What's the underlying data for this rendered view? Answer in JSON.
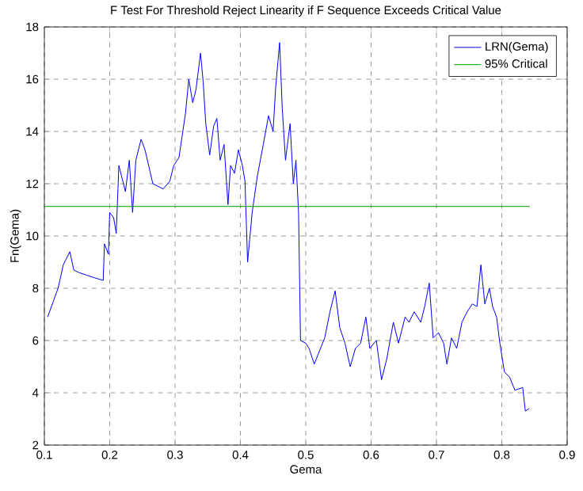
{
  "chart_data": {
    "type": "line",
    "title": "F Test For Threshold Reject Linearity if F Sequence Exceeds Critical Value",
    "xlabel": "Gema",
    "ylabel": "Fn(Gema)",
    "xlim": [
      0.1,
      0.9
    ],
    "xticks": [
      0.1,
      0.2,
      0.3,
      0.4,
      0.5,
      0.6,
      0.7,
      0.8,
      0.9
    ],
    "ylim": [
      2,
      18
    ],
    "yticks": [
      2,
      4,
      6,
      8,
      10,
      12,
      14,
      16,
      18
    ],
    "grid": true,
    "legend": "top right",
    "series": [
      {
        "name": "LRN(Gema)",
        "color": "#0000ff",
        "x": [
          0.105,
          0.121,
          0.129,
          0.139,
          0.145,
          0.153,
          0.165,
          0.177,
          0.19,
          0.192,
          0.198,
          0.2,
          0.206,
          0.21,
          0.214,
          0.22,
          0.224,
          0.23,
          0.235,
          0.24,
          0.248,
          0.254,
          0.266,
          0.282,
          0.292,
          0.298,
          0.306,
          0.316,
          0.321,
          0.327,
          0.332,
          0.339,
          0.343,
          0.347,
          0.353,
          0.359,
          0.364,
          0.369,
          0.375,
          0.381,
          0.385,
          0.391,
          0.397,
          0.403,
          0.407,
          0.411,
          0.418,
          0.426,
          0.435,
          0.443,
          0.45,
          0.454,
          0.46,
          0.464,
          0.469,
          0.476,
          0.481,
          0.485,
          0.489,
          0.492,
          0.5,
          0.505,
          0.513,
          0.521,
          0.529,
          0.537,
          0.545,
          0.552,
          0.56,
          0.568,
          0.576,
          0.584,
          0.592,
          0.598,
          0.608,
          0.616,
          0.624,
          0.634,
          0.642,
          0.652,
          0.658,
          0.666,
          0.676,
          0.682,
          0.689,
          0.695,
          0.703,
          0.711,
          0.716,
          0.723,
          0.731,
          0.739,
          0.747,
          0.755,
          0.762,
          0.768,
          0.774,
          0.781,
          0.786,
          0.792,
          0.797,
          0.804,
          0.812,
          0.82,
          0.832,
          0.836,
          0.842
        ],
        "values": [
          6.9,
          8.0,
          8.9,
          9.4,
          8.7,
          8.6,
          8.5,
          8.4,
          8.3,
          9.7,
          9.3,
          10.9,
          10.7,
          10.1,
          12.7,
          12.1,
          11.7,
          12.9,
          10.9,
          12.9,
          13.7,
          13.3,
          12.0,
          11.8,
          12.1,
          12.7,
          13.0,
          14.7,
          16.0,
          15.1,
          15.6,
          17.0,
          15.9,
          14.3,
          13.1,
          14.2,
          14.5,
          12.9,
          13.5,
          11.2,
          12.7,
          12.4,
          13.3,
          12.7,
          12.1,
          9.0,
          10.9,
          12.3,
          13.5,
          14.6,
          14.0,
          15.7,
          17.4,
          14.9,
          12.9,
          14.3,
          12.0,
          12.9,
          10.9,
          6.0,
          5.9,
          5.7,
          5.1,
          5.6,
          6.1,
          7.1,
          7.9,
          6.5,
          5.9,
          5.0,
          5.7,
          5.9,
          6.9,
          5.7,
          6.0,
          4.5,
          5.3,
          6.7,
          5.9,
          6.9,
          6.7,
          7.1,
          6.7,
          7.3,
          8.2,
          6.1,
          6.3,
          5.9,
          5.1,
          6.1,
          5.7,
          6.7,
          7.1,
          7.4,
          7.3,
          8.9,
          7.4,
          8.0,
          7.3,
          6.9,
          5.9,
          4.8,
          4.6,
          4.1,
          4.2,
          3.3,
          3.4
        ]
      },
      {
        "name": "95% Critical",
        "color": "#00a000",
        "x": [
          0.1,
          0.843
        ],
        "values": [
          11.13,
          11.13
        ]
      }
    ]
  }
}
